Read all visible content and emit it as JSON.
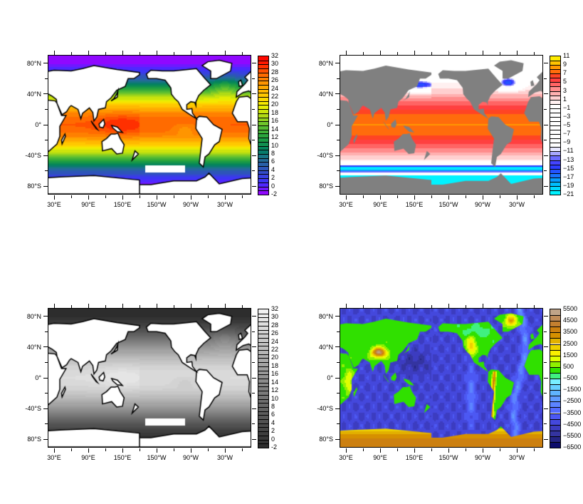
{
  "axes": {
    "x_ticks": [
      {
        "lon": 30,
        "label": "30°E"
      },
      {
        "lon": 90,
        "label": "90°E"
      },
      {
        "lon": 150,
        "label": "150°E"
      },
      {
        "lon": 210,
        "label": "150°W"
      },
      {
        "lon": 270,
        "label": "90°W"
      },
      {
        "lon": 330,
        "label": "30°W"
      }
    ],
    "y_ticks": [
      {
        "lat": 80,
        "label": "80°N"
      },
      {
        "lat": 40,
        "label": "40°N"
      },
      {
        "lat": 0,
        "label": "0°"
      },
      {
        "lat": -40,
        "label": "-40°S"
      },
      {
        "lat": -80,
        "label": "80°S"
      }
    ],
    "lon_range": [
      20,
      375
    ],
    "lat_range": [
      -90,
      90
    ]
  },
  "panels": [
    {
      "id": "sst-color",
      "field": "sst",
      "land_color": "#ffffff",
      "coastline": true,
      "colorbar": {
        "min": -2,
        "max": 32,
        "step": 1,
        "labels": [
          "32",
          "30",
          "28",
          "26",
          "24",
          "22",
          "20",
          "18",
          "16",
          "14",
          "12",
          "10",
          "8",
          "6",
          "4",
          "2",
          "0",
          "-2"
        ]
      },
      "palette": [
        [
          -2,
          "#a000ff"
        ],
        [
          1,
          "#4030ff"
        ],
        [
          4,
          "#3050c0"
        ],
        [
          7,
          "#207090"
        ],
        [
          9,
          "#008060"
        ],
        [
          12,
          "#20a040"
        ],
        [
          15,
          "#60c030"
        ],
        [
          18,
          "#c0e010"
        ],
        [
          20,
          "#f0f000"
        ],
        [
          22,
          "#ffd000"
        ],
        [
          25,
          "#ffa000"
        ],
        [
          28,
          "#ff6000"
        ],
        [
          30,
          "#ff2000"
        ],
        [
          32,
          "#ff0000"
        ]
      ]
    },
    {
      "id": "sst-anomaly",
      "field": "anom",
      "land_color": "#808080",
      "coastline": false,
      "colorbar": {
        "min": -21,
        "max": 11,
        "step": 1,
        "labels": [
          "11",
          "9",
          "7",
          "5",
          "3",
          "1",
          "−1",
          "−3",
          "−5",
          "−7",
          "−9",
          "−11",
          "−13",
          "−15",
          "−17",
          "−19",
          "−21"
        ]
      },
      "palette": [
        [
          -21,
          "#00ffff"
        ],
        [
          -18,
          "#00b0ff"
        ],
        [
          -16,
          "#2060ff"
        ],
        [
          -14,
          "#3030ff"
        ],
        [
          -12,
          "#8080ff"
        ],
        [
          -11,
          "#d0d0ff"
        ],
        [
          -10,
          "#ffffff"
        ],
        [
          0,
          "#ffffff"
        ],
        [
          1,
          "#ffe0e0"
        ],
        [
          3,
          "#ffa0a0"
        ],
        [
          5,
          "#ff5050"
        ],
        [
          6,
          "#ff3030"
        ],
        [
          8,
          "#ff8000"
        ],
        [
          9,
          "#ffb000"
        ],
        [
          11,
          "#ffff00"
        ]
      ]
    },
    {
      "id": "sst-gray",
      "field": "sst",
      "land_color": "#ffffff",
      "coastline": true,
      "colorbar": {
        "min": -2,
        "max": 32,
        "step": 1,
        "labels": [
          "32",
          "30",
          "28",
          "26",
          "24",
          "22",
          "20",
          "18",
          "16",
          "14",
          "12",
          "10",
          "8",
          "6",
          "4",
          "2",
          "0",
          "-2"
        ]
      },
      "palette": [
        [
          -2,
          "#2a2a2a"
        ],
        [
          32,
          "#f4f4f4"
        ]
      ]
    },
    {
      "id": "topography",
      "field": "topo",
      "land_color": "field",
      "coastline": false,
      "colorbar": {
        "min": -6500,
        "max": 5500,
        "step": 500,
        "labels": [
          "5500",
          "4500",
          "3500",
          "2500",
          "1500",
          "500",
          "−500",
          "−1500",
          "−2500",
          "−3500",
          "−4500",
          "−5500",
          "−6500"
        ]
      },
      "palette": [
        [
          -6500,
          "#000060"
        ],
        [
          -5500,
          "#303090"
        ],
        [
          -4500,
          "#4040d0"
        ],
        [
          -3500,
          "#5060ff"
        ],
        [
          -2500,
          "#6090ff"
        ],
        [
          -1500,
          "#60c0ff"
        ],
        [
          -500,
          "#80ffff"
        ],
        [
          0,
          "#00e000"
        ],
        [
          500,
          "#60e000"
        ],
        [
          1000,
          "#c0ff00"
        ],
        [
          1500,
          "#ffff00"
        ],
        [
          2500,
          "#e8c000"
        ],
        [
          3500,
          "#d08000"
        ],
        [
          4500,
          "#c08040"
        ],
        [
          5500,
          "#c0b0a0"
        ]
      ]
    }
  ]
}
